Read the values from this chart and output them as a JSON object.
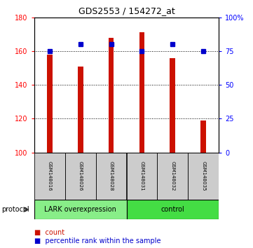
{
  "title": "GDS2553 / 154272_at",
  "samples": [
    "GSM148016",
    "GSM148026",
    "GSM148028",
    "GSM148031",
    "GSM148032",
    "GSM148035"
  ],
  "bar_values": [
    158,
    151,
    168,
    171,
    156,
    119
  ],
  "percentile_values": [
    75,
    80,
    80,
    75,
    80,
    75
  ],
  "bar_color": "#cc1100",
  "percentile_color": "#0000cc",
  "ylim_left": [
    100,
    180
  ],
  "ylim_right": [
    0,
    100
  ],
  "yticks_left": [
    100,
    120,
    140,
    160,
    180
  ],
  "ytick_labels_right": [
    "0",
    "25",
    "50",
    "75",
    "100%"
  ],
  "yticks_right": [
    0,
    25,
    50,
    75,
    100
  ],
  "group_lark_color": "#88ee88",
  "group_ctrl_color": "#44dd44",
  "group_lark_label": "LARK overexpression",
  "group_ctrl_label": "control",
  "sample_bg_color": "#cccccc",
  "protocol_label": "protocol",
  "bar_width": 0.18,
  "background_color": "#ffffff",
  "plot_bg_color": "#ffffff",
  "label_count": "count",
  "label_percentile": "percentile rank within the sample",
  "title_fontsize": 9,
  "axis_fontsize": 7,
  "sample_fontsize": 5,
  "proto_fontsize": 7,
  "legend_fontsize": 7
}
